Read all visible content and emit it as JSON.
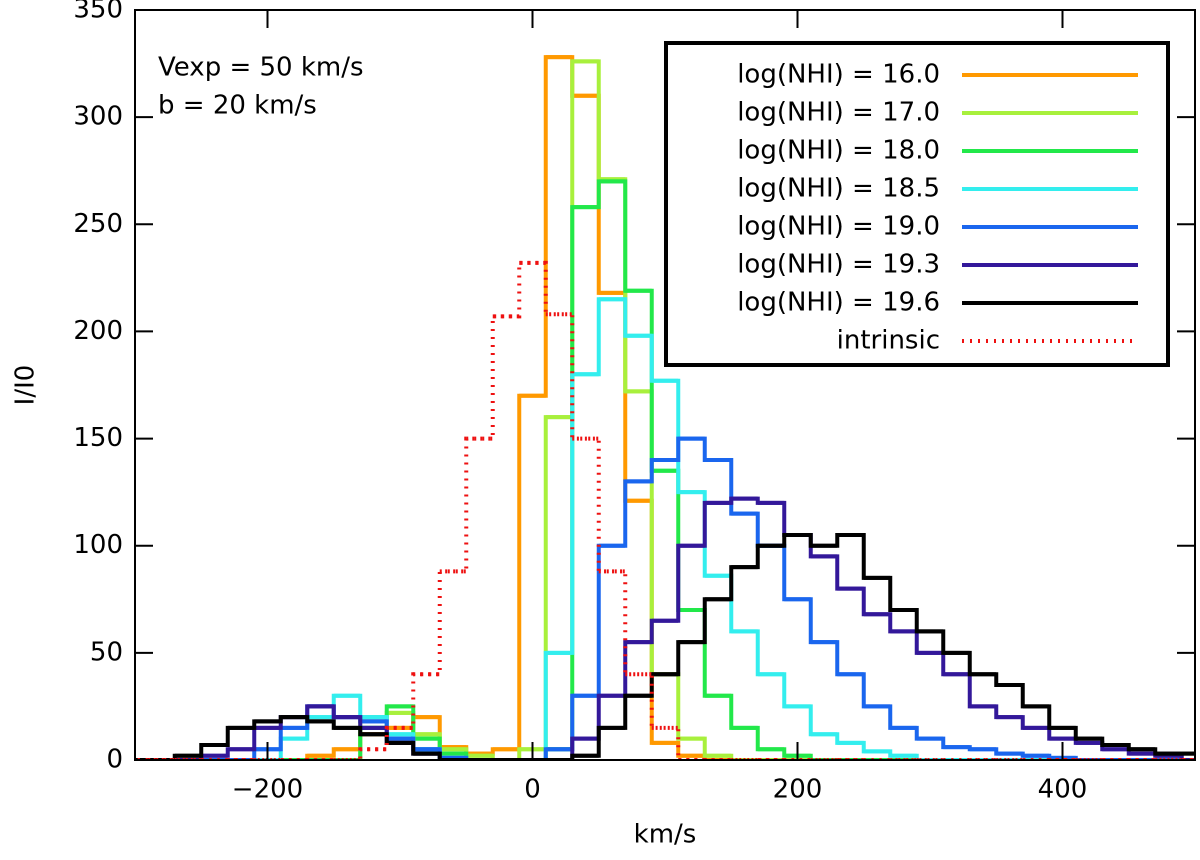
{
  "chart_data": {
    "type": "histogram",
    "xlabel": "km/s",
    "ylabel": "I/I0",
    "annotations": [
      "Vexp = 50 km/s",
      "b = 20 km/s"
    ],
    "bins": [
      -310,
      -290,
      -270,
      -250,
      -230,
      -210,
      -190,
      -170,
      -150,
      -130,
      -110,
      -90,
      -70,
      -50,
      -30,
      -10,
      10,
      30,
      50,
      70,
      90,
      110,
      130,
      150,
      170,
      190,
      210,
      230,
      250,
      270,
      290,
      310,
      330,
      350,
      370,
      390,
      410,
      430,
      450,
      470,
      490,
      510
    ],
    "series": [
      {
        "name": "log(NHI) = 16.0",
        "color": "#ff9900",
        "values": [
          0,
          0,
          0,
          0,
          0,
          0,
          0,
          2,
          5,
          12,
          15,
          20,
          6,
          3,
          5,
          170,
          328,
          310,
          218,
          121,
          8,
          2,
          0,
          0,
          0,
          0,
          0,
          0,
          0,
          0,
          0,
          0,
          0,
          0,
          0,
          0,
          0,
          0,
          0,
          0,
          0
        ]
      },
      {
        "name": "log(NHI) = 17.0",
        "color": "#a8f03c",
        "values": [
          0,
          0,
          0,
          0,
          0,
          0,
          0,
          0,
          0,
          20,
          22,
          12,
          5,
          2,
          0,
          5,
          160,
          326,
          271,
          172,
          40,
          10,
          2,
          0,
          0,
          0,
          0,
          0,
          0,
          0,
          0,
          0,
          0,
          0,
          0,
          0,
          0,
          0,
          0,
          0,
          0
        ]
      },
      {
        "name": "log(NHI) = 18.0",
        "color": "#22e84a",
        "values": [
          0,
          0,
          0,
          0,
          0,
          0,
          0,
          0,
          0,
          15,
          25,
          10,
          3,
          0,
          0,
          0,
          5,
          258,
          270,
          219,
          135,
          70,
          30,
          15,
          5,
          2,
          0,
          0,
          0,
          0,
          0,
          0,
          0,
          0,
          0,
          0,
          0,
          0,
          0,
          0,
          0
        ]
      },
      {
        "name": "log(NHI) = 18.5",
        "color": "#33eeee",
        "values": [
          0,
          0,
          0,
          0,
          0,
          0,
          10,
          20,
          30,
          20,
          12,
          5,
          1,
          0,
          0,
          0,
          50,
          180,
          215,
          198,
          177,
          125,
          86,
          60,
          40,
          25,
          12,
          8,
          4,
          2,
          0,
          0,
          0,
          0,
          0,
          0,
          0,
          0,
          0,
          0,
          0
        ]
      },
      {
        "name": "log(NHI) = 19.0",
        "color": "#1a66ee",
        "values": [
          0,
          0,
          0,
          0,
          0,
          5,
          15,
          25,
          20,
          18,
          10,
          5,
          1,
          0,
          0,
          0,
          5,
          30,
          100,
          130,
          140,
          150,
          140,
          115,
          100,
          75,
          55,
          40,
          25,
          15,
          10,
          6,
          5,
          3,
          2,
          1,
          0,
          0,
          0,
          0,
          0
        ]
      },
      {
        "name": "log(NHI) = 19.3",
        "color": "#33189a",
        "values": [
          0,
          0,
          0,
          2,
          5,
          15,
          20,
          25,
          20,
          15,
          8,
          3,
          0,
          0,
          0,
          0,
          0,
          10,
          30,
          55,
          65,
          100,
          120,
          122,
          120,
          105,
          95,
          80,
          68,
          60,
          50,
          40,
          25,
          20,
          15,
          10,
          8,
          5,
          3,
          2,
          0
        ]
      },
      {
        "name": "log(NHI) = 19.6",
        "color": "#000000",
        "values": [
          0,
          0,
          2,
          7,
          15,
          18,
          20,
          18,
          15,
          12,
          8,
          3,
          0,
          0,
          0,
          0,
          0,
          2,
          15,
          30,
          40,
          55,
          75,
          90,
          100,
          105,
          100,
          105,
          85,
          70,
          60,
          50,
          40,
          35,
          25,
          15,
          10,
          7,
          5,
          3,
          3
        ]
      },
      {
        "name": "intrinsic",
        "color": "#ee1111",
        "dashed": true,
        "values": [
          0,
          0,
          0,
          0,
          0,
          0,
          0,
          0,
          0,
          5,
          15,
          40,
          88,
          150,
          207,
          232,
          208,
          150,
          88,
          40,
          15,
          0,
          0,
          0,
          0,
          0,
          0,
          0,
          0,
          0,
          0,
          0,
          0,
          0,
          0,
          0,
          0,
          0,
          0,
          0,
          0
        ]
      }
    ],
    "xlim": [
      -300,
      500
    ],
    "xticks": [
      {
        "value": -200,
        "label": "−200"
      },
      0,
      200,
      400
    ],
    "ylim": [
      0,
      350
    ],
    "yticks": [
      0,
      50,
      100,
      150,
      200,
      250,
      300,
      350
    ]
  }
}
